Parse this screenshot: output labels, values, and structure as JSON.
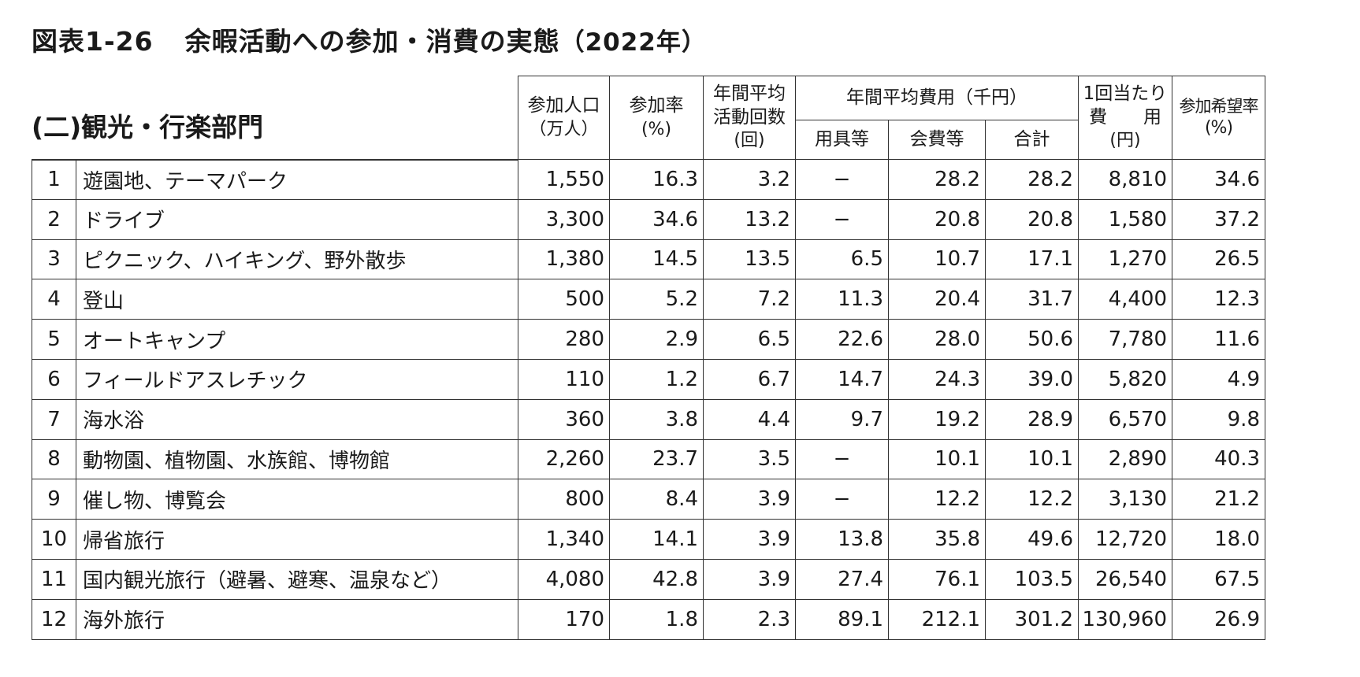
{
  "title": {
    "figure_no": "図表1-26",
    "text": "余暇活動への参加・消費の実態",
    "year": "（2022年）"
  },
  "section_label": "(二)観光・行楽部門",
  "headers": {
    "population": [
      "参加人口",
      "（万人）"
    ],
    "rate": [
      "参加率",
      "(%)"
    ],
    "annual_count": [
      "年間平均",
      "活動回数",
      "(回)"
    ],
    "annual_cost_group": "年間平均費用（千円）",
    "equipment": "用具等",
    "fees": "会費等",
    "total": "合計",
    "per_time": [
      "1回当たり",
      "費　　用",
      "(円)"
    ],
    "desire_rate": [
      "参加希望率",
      "(%)"
    ]
  },
  "rows": [
    {
      "no": "1",
      "name": "遊園地、テーマパーク",
      "population": "1,550",
      "rate": "16.3",
      "count": "3.2",
      "equipment": "−",
      "fees": "28.2",
      "total": "28.2",
      "per_time": "8,810",
      "desire": "34.6"
    },
    {
      "no": "2",
      "name": "ドライブ",
      "population": "3,300",
      "rate": "34.6",
      "count": "13.2",
      "equipment": "−",
      "fees": "20.8",
      "total": "20.8",
      "per_time": "1,580",
      "desire": "37.2"
    },
    {
      "no": "3",
      "name": "ピクニック、ハイキング、野外散歩",
      "population": "1,380",
      "rate": "14.5",
      "count": "13.5",
      "equipment": "6.5",
      "fees": "10.7",
      "total": "17.1",
      "per_time": "1,270",
      "desire": "26.5"
    },
    {
      "no": "4",
      "name": "登山",
      "population": "500",
      "rate": "5.2",
      "count": "7.2",
      "equipment": "11.3",
      "fees": "20.4",
      "total": "31.7",
      "per_time": "4,400",
      "desire": "12.3"
    },
    {
      "no": "5",
      "name": "オートキャンプ",
      "population": "280",
      "rate": "2.9",
      "count": "6.5",
      "equipment": "22.6",
      "fees": "28.0",
      "total": "50.6",
      "per_time": "7,780",
      "desire": "11.6"
    },
    {
      "no": "6",
      "name": "フィールドアスレチック",
      "population": "110",
      "rate": "1.2",
      "count": "6.7",
      "equipment": "14.7",
      "fees": "24.3",
      "total": "39.0",
      "per_time": "5,820",
      "desire": "4.9"
    },
    {
      "no": "7",
      "name": "海水浴",
      "population": "360",
      "rate": "3.8",
      "count": "4.4",
      "equipment": "9.7",
      "fees": "19.2",
      "total": "28.9",
      "per_time": "6,570",
      "desire": "9.8"
    },
    {
      "no": "8",
      "name": "動物園、植物園、水族館、博物館",
      "population": "2,260",
      "rate": "23.7",
      "count": "3.5",
      "equipment": "−",
      "fees": "10.1",
      "total": "10.1",
      "per_time": "2,890",
      "desire": "40.3"
    },
    {
      "no": "9",
      "name": "催し物、博覧会",
      "population": "800",
      "rate": "8.4",
      "count": "3.9",
      "equipment": "−",
      "fees": "12.2",
      "total": "12.2",
      "per_time": "3,130",
      "desire": "21.2"
    },
    {
      "no": "10",
      "name": "帰省旅行",
      "population": "1,340",
      "rate": "14.1",
      "count": "3.9",
      "equipment": "13.8",
      "fees": "35.8",
      "total": "49.6",
      "per_time": "12,720",
      "desire": "18.0"
    },
    {
      "no": "11",
      "name": "国内観光旅行（避暑、避寒、温泉など）",
      "population": "4,080",
      "rate": "42.8",
      "count": "3.9",
      "equipment": "27.4",
      "fees": "76.1",
      "total": "103.5",
      "per_time": "26,540",
      "desire": "67.5"
    },
    {
      "no": "12",
      "name": "海外旅行",
      "population": "170",
      "rate": "1.8",
      "count": "2.3",
      "equipment": "89.1",
      "fees": "212.1",
      "total": "301.2",
      "per_time": "130,960",
      "desire": "26.9"
    }
  ]
}
